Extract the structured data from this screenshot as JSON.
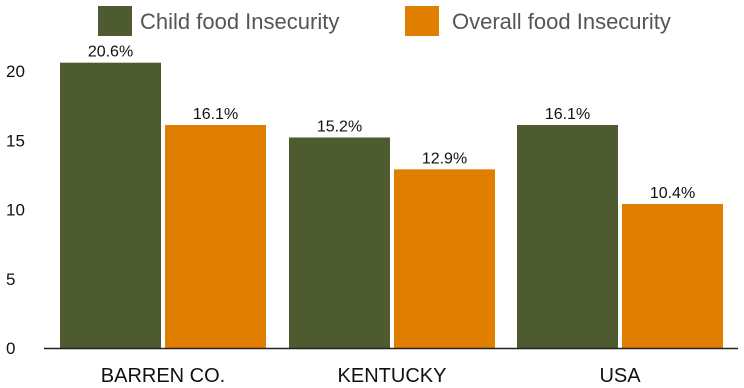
{
  "chart_data": {
    "type": "bar",
    "categories": [
      "BARREN CO.",
      "KENTUCKY",
      "USA"
    ],
    "series": [
      {
        "name": "Child food Insecurity",
        "values": [
          20.6,
          15.2,
          16.1
        ],
        "labels": [
          "20.6%",
          "15.2%",
          "16.1%"
        ],
        "color": "#4e5b31"
      },
      {
        "name": "Overall food Insecurity",
        "values": [
          16.1,
          12.9,
          10.4
        ],
        "labels": [
          "16.1%",
          "12.9%",
          "10.4%"
        ],
        "color": "#e07e00"
      }
    ],
    "yticks": [
      "0",
      "5",
      "10",
      "15",
      "20"
    ],
    "ylim": [
      0,
      20
    ],
    "grid": false,
    "legend_position": "top",
    "title": "",
    "xlabel": "",
    "ylabel": ""
  }
}
